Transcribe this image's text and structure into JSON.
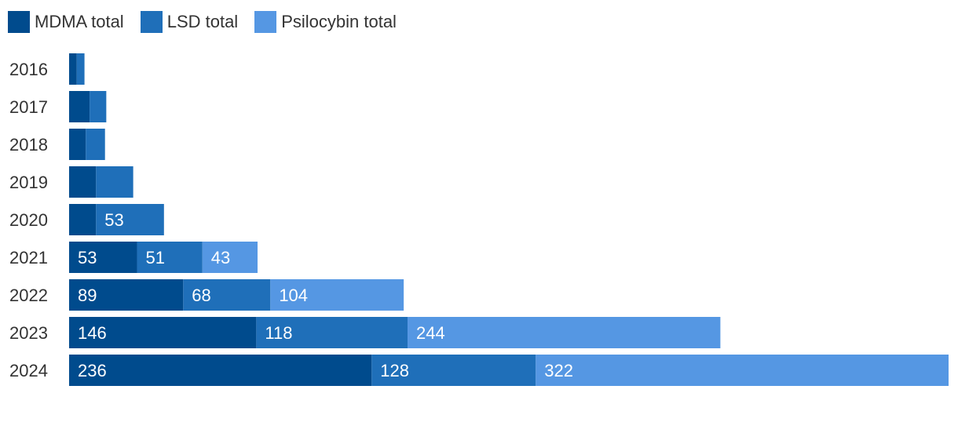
{
  "chart_data": {
    "type": "bar",
    "orientation": "horizontal",
    "stacked": true,
    "categories": [
      "2016",
      "2017",
      "2018",
      "2019",
      "2020",
      "2021",
      "2022",
      "2023",
      "2024"
    ],
    "series": [
      {
        "name": "MDMA total",
        "color": "#004b8d",
        "values": [
          6,
          16,
          13,
          21,
          21,
          53,
          89,
          146,
          236
        ],
        "labels": [
          "",
          "",
          "",
          "",
          "",
          "53",
          "89",
          "146",
          "236"
        ]
      },
      {
        "name": "LSD total",
        "color": "#1f6fb9",
        "values": [
          6,
          13,
          15,
          29,
          53,
          51,
          68,
          118,
          128
        ],
        "labels": [
          "",
          "",
          "",
          "",
          "53",
          "51",
          "68",
          "118",
          "128"
        ]
      },
      {
        "name": "Psilocybin total",
        "color": "#5597e3",
        "values": [
          0,
          0,
          0,
          0,
          0,
          43,
          104,
          244,
          322
        ],
        "labels": [
          "",
          "",
          "",
          "",
          "",
          "43",
          "104",
          "244",
          "322"
        ]
      }
    ],
    "xlim": [
      0,
      686
    ],
    "grid": false,
    "legend_position": "top-left"
  }
}
